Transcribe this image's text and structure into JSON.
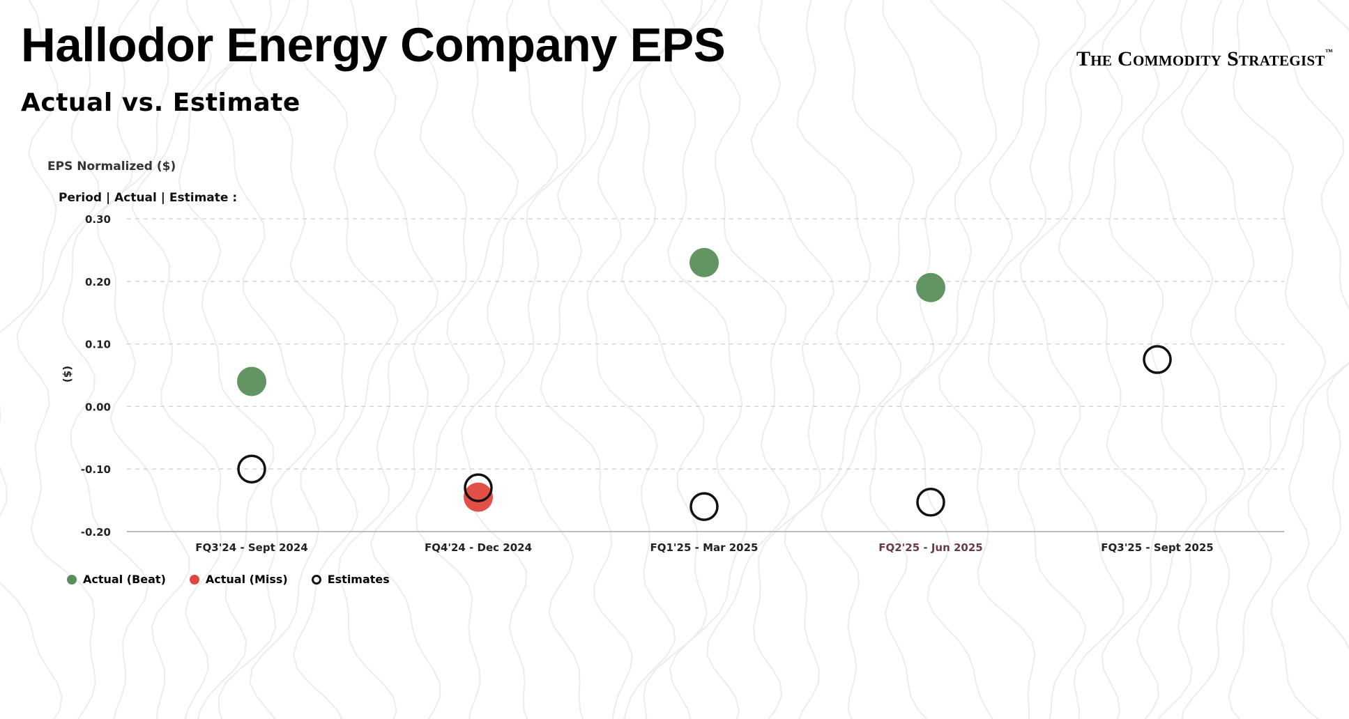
{
  "header": {
    "title": "Hallodor Energy Company EPS",
    "subtitle": "Actual vs. Estimate",
    "brand": "The Commodity Strategist",
    "brand_mark": "™"
  },
  "colors": {
    "beat": "#5a8f5a",
    "miss": "#e0463c",
    "estimate_stroke": "#111111",
    "grid": "#cfcfcf",
    "highlight_label": "#6b3a4a"
  },
  "chart_data": {
    "type": "scatter",
    "y_title": "EPS Normalized ($)",
    "tooltip_header": "Period | Actual | Estimate :",
    "ylabel": "($)",
    "ylim": [
      -0.2,
      0.3
    ],
    "y_ticks": [
      "0.30",
      "0.20",
      "0.10",
      "0.00",
      "-0.10",
      "-0.20"
    ],
    "categories": [
      "FQ3'24 - Sept 2024",
      "FQ4'24 - Dec 2024",
      "FQ1'25 - Mar 2025",
      "FQ2'25 - Jun 2025",
      "FQ3'25 - Sept 2025"
    ],
    "highlighted_category": "FQ2'25 - Jun 2025",
    "grid": "horizontal dashed",
    "legend_position": "bottom-left",
    "series": [
      {
        "name": "Actual (Beat)",
        "key": "beat",
        "values": [
          0.04,
          null,
          0.23,
          0.19,
          null
        ]
      },
      {
        "name": "Actual (Miss)",
        "key": "miss",
        "values": [
          null,
          -0.145,
          null,
          null,
          null
        ]
      },
      {
        "name": "Estimates",
        "key": "estimate",
        "values": [
          -0.1,
          -0.13,
          -0.16,
          -0.153,
          0.075
        ]
      }
    ]
  }
}
